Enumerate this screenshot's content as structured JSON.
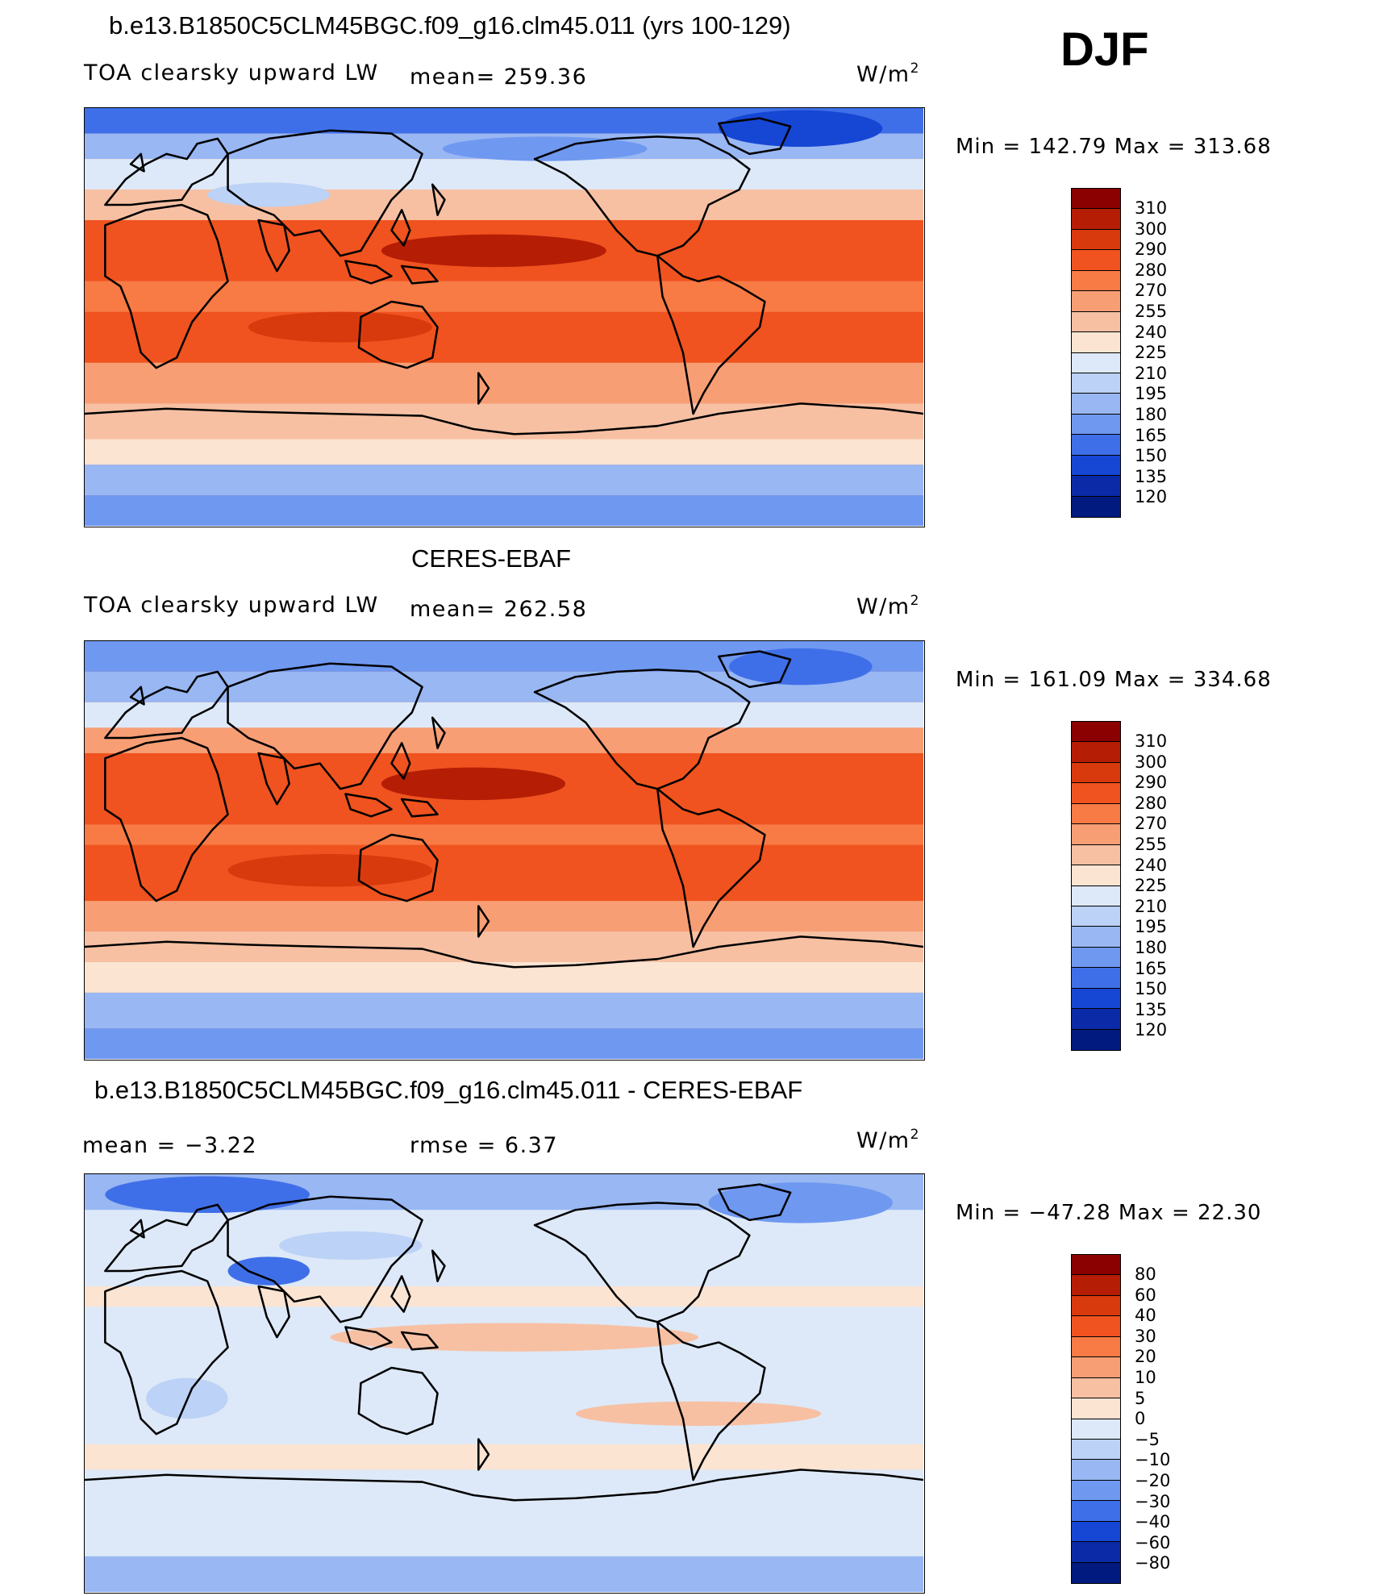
{
  "season": "DJF",
  "units": "W/m",
  "units_sup": "2",
  "panels": [
    {
      "title": "b.e13.B1850C5CLM45BGC.f09_g16.clm45.011 (yrs 100-129)",
      "variable": "TOA clearsky upward LW",
      "stat": "mean=  259.36",
      "minmax": "Min  =  142.79  Max  =  313.68",
      "colorbar": {
        "labels": [
          "310",
          "300",
          "290",
          "280",
          "270",
          "255",
          "240",
          "225",
          "210",
          "195",
          "180",
          "165",
          "150",
          "135",
          "120"
        ],
        "colors": [
          "#8b0000",
          "#b51d05",
          "#d93a0d",
          "#f0531f",
          "#f87a45",
          "#f89e75",
          "#f7c0a3",
          "#fbe4d2",
          "#dde9f8",
          "#bcd2f6",
          "#98b7f3",
          "#6f98f0",
          "#3f6fe8",
          "#1646d4",
          "#0a2aa8",
          "#001a80"
        ]
      }
    },
    {
      "title": "CERES-EBAF",
      "variable": "TOA clearsky upward LW",
      "stat": "mean=  262.58",
      "minmax": "Min  =  161.09  Max  =  334.68",
      "colorbar": {
        "labels": [
          "310",
          "300",
          "290",
          "280",
          "270",
          "255",
          "240",
          "225",
          "210",
          "195",
          "180",
          "165",
          "150",
          "135",
          "120"
        ],
        "colors": [
          "#8b0000",
          "#b51d05",
          "#d93a0d",
          "#f0531f",
          "#f87a45",
          "#f89e75",
          "#f7c0a3",
          "#fbe4d2",
          "#dde9f8",
          "#bcd2f6",
          "#98b7f3",
          "#6f98f0",
          "#3f6fe8",
          "#1646d4",
          "#0a2aa8",
          "#001a80"
        ]
      }
    },
    {
      "title": "b.e13.B1850C5CLM45BGC.f09_g16.clm45.011 - CERES-EBAF",
      "stat_left": "mean  =    −3.22",
      "stat_mid": "rmse  =     6.37",
      "minmax": "Min  =  −47.28  Max  =   22.30",
      "colorbar": {
        "labels": [
          "80",
          "60",
          "40",
          "30",
          "20",
          "10",
          "5",
          "0",
          "−5",
          "−10",
          "−20",
          "−30",
          "−40",
          "−60",
          "−80"
        ],
        "colors": [
          "#8b0000",
          "#b51d05",
          "#d93a0d",
          "#f0531f",
          "#f87a45",
          "#f89e75",
          "#f7c0a3",
          "#fbe4d2",
          "#dde9f8",
          "#bcd2f6",
          "#98b7f3",
          "#6f98f0",
          "#3f6fe8",
          "#1646d4",
          "#0a2aa8",
          "#001a80"
        ]
      }
    }
  ]
}
